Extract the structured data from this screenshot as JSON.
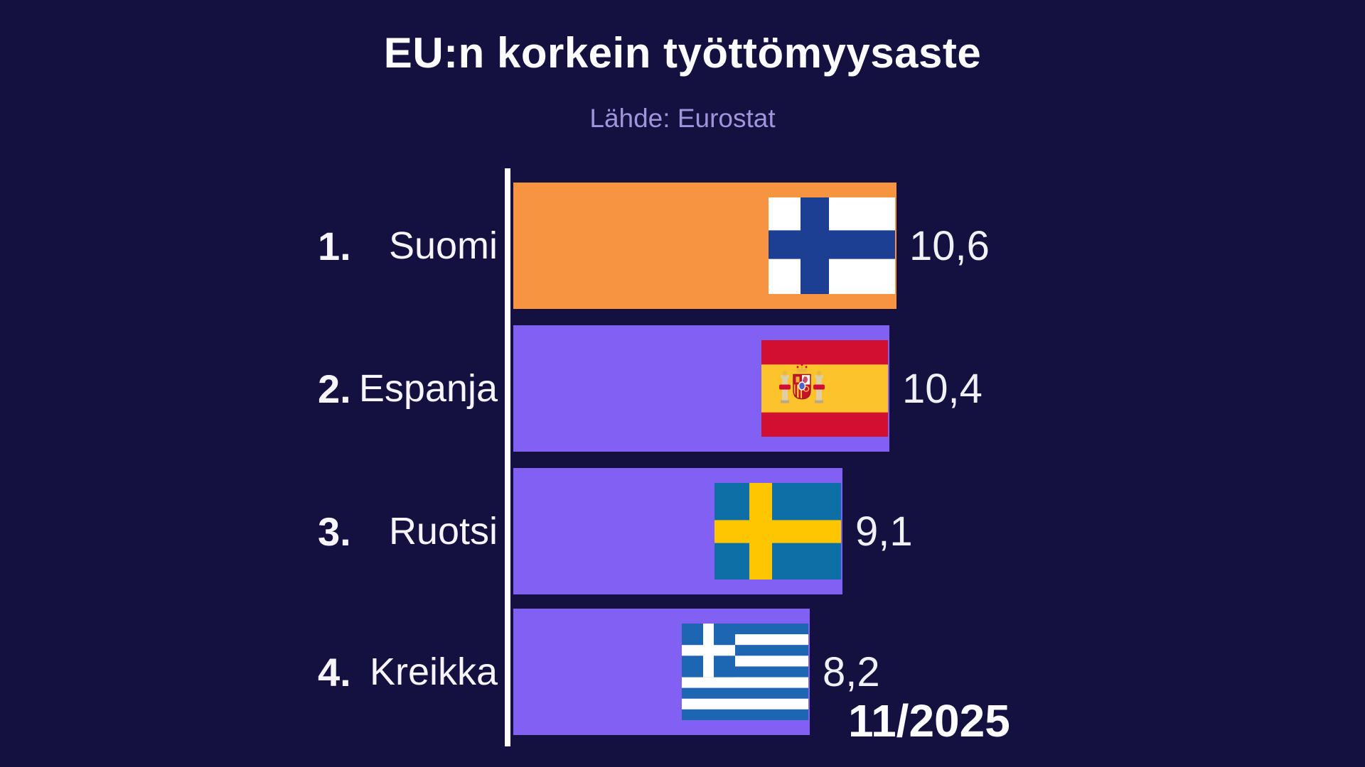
{
  "title": "EU:n korkein työttömyysaste",
  "subtitle": "Lähde: Eurostat",
  "period_label": "11/2025",
  "colors": {
    "background": "#141040",
    "bar_highlight": "#f79440",
    "bar_default": "#8161f2",
    "axis": "#fdfdfe",
    "title_text": "#fcfbfd",
    "subtitle_text": "#9e95da",
    "label_text": "#f7f5fb",
    "value_text": "#f2f0f7"
  },
  "chart_data": {
    "type": "bar",
    "orientation": "horizontal",
    "title": "EU:n korkein työttömyysaste",
    "source": "Lähde: Eurostat",
    "period": "11/2025",
    "categories": [
      "Suomi",
      "Espanja",
      "Ruotsi",
      "Kreikka"
    ],
    "values": [
      10.6,
      10.4,
      9.1,
      8.2
    ],
    "value_range_implied": [
      0,
      10.6
    ],
    "grid": false,
    "legend": false,
    "bars": [
      {
        "rank": "1.",
        "label": "Suomi",
        "value": 10.6,
        "value_label": "10,6",
        "flag": "finland",
        "color": "#f79440",
        "highlighted": true
      },
      {
        "rank": "2.",
        "label": "Espanja",
        "value": 10.4,
        "value_label": "10,4",
        "flag": "spain",
        "color": "#8161f2",
        "highlighted": false
      },
      {
        "rank": "3.",
        "label": "Ruotsi",
        "value": 9.1,
        "value_label": "9,1",
        "flag": "sweden",
        "color": "#8161f2",
        "highlighted": false
      },
      {
        "rank": "4.",
        "label": "Kreikka",
        "value": 8.2,
        "value_label": "8,2",
        "flag": "greece",
        "color": "#8161f2",
        "highlighted": false
      }
    ]
  }
}
